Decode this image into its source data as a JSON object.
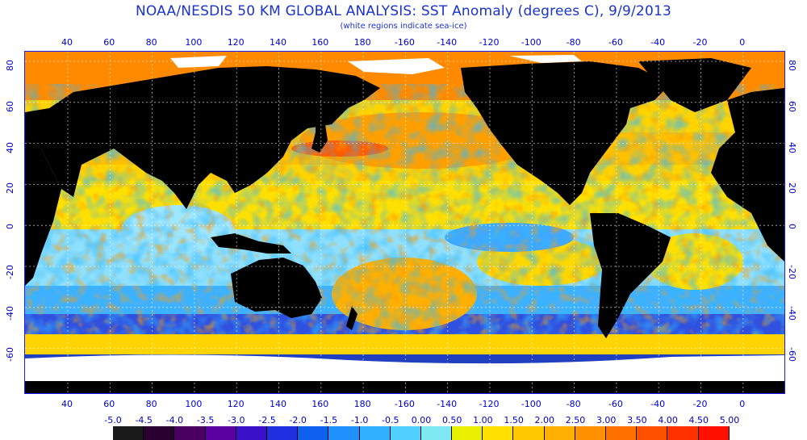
{
  "title": "NOAA/NESDIS 50 KM GLOBAL ANALYSIS: SST Anomaly (degrees C), 9/9/2013",
  "subtitle": "(white regions indicate sea-ice)",
  "lon_labels": [
    "40",
    "60",
    "80",
    "100",
    "120",
    "140",
    "160",
    "180",
    "-160",
    "-140",
    "-120",
    "-100",
    "-80",
    "-60",
    "-40",
    "-20",
    "0"
  ],
  "lat_labels_left": [
    "80",
    "60",
    "40",
    "20",
    "0",
    "-20",
    "-40",
    "-60"
  ],
  "lat_labels_right": [
    "80",
    "60",
    "40",
    "20",
    "0",
    "-20",
    "-40",
    "-60"
  ],
  "colorbar": {
    "labels": [
      "-5.0",
      "-4.5",
      "-4.0",
      "-3.5",
      "-3.0",
      "-2.5",
      "-2.0",
      "-1.5",
      "-1.0",
      "-0.5",
      "0.00",
      "0.50",
      "1.00",
      "1.50",
      "2.00",
      "2.50",
      "3.00",
      "3.50",
      "4.00",
      "4.50",
      "5.00"
    ],
    "colors": [
      "#1a1a1a",
      "#2a0030",
      "#4a0060",
      "#5a00a0",
      "#3a10c8",
      "#2030e0",
      "#1060f0",
      "#2090ff",
      "#30b0ff",
      "#50d0ff",
      "#80e8f0",
      "#e8f000",
      "#ffe000",
      "#ffc800",
      "#ffb000",
      "#ff9000",
      "#ff7000",
      "#ff5000",
      "#ff3000",
      "#ff1000"
    ]
  },
  "colors": {
    "land": "#000000",
    "sea_ice": "#ffffff",
    "text": "#0000cc",
    "frame": "#1a1aff"
  }
}
